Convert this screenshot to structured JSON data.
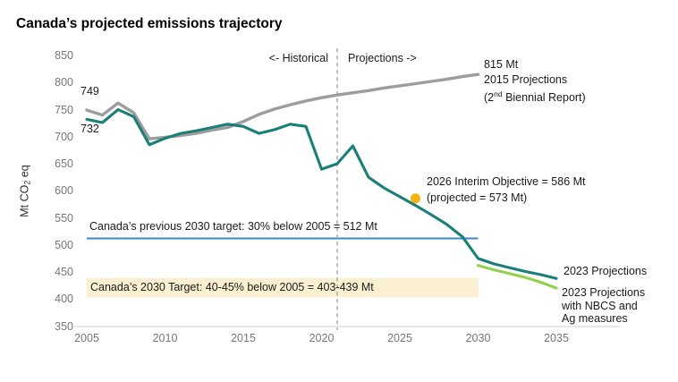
{
  "chart_data": {
    "type": "line",
    "title": "Canada’s projected emissions trajectory",
    "ylabel_parts": {
      "prefix": "Mt CO",
      "sub": "2",
      "suffix": " eq"
    },
    "xlim": [
      2005,
      2035
    ],
    "ylim": [
      350,
      850
    ],
    "x_ticks": [
      2005,
      2010,
      2015,
      2020,
      2025,
      2030,
      2035
    ],
    "y_ticks": [
      850,
      800,
      750,
      700,
      650,
      600,
      550,
      500,
      450,
      400,
      350
    ],
    "grid": "off",
    "legend": "inline-labels",
    "series": [
      {
        "name": "2015 Projections (2nd Biennial Report)",
        "color": "#9d9d9d",
        "width": 3.4,
        "start_year": 2005,
        "values": [
          749,
          740,
          762,
          744,
          696,
          699,
          702,
          706,
          712,
          717,
          728,
          741,
          751,
          759,
          766,
          772,
          777,
          781,
          785,
          790,
          794,
          798,
          802,
          806,
          811,
          815
        ]
      },
      {
        "name": "2023 Projections",
        "color": "#1a7f78",
        "width": 3.1,
        "start_year": 2005,
        "values": [
          732,
          726,
          750,
          737,
          685,
          697,
          706,
          711,
          717,
          723,
          719,
          706,
          713,
          723,
          719,
          640,
          650,
          683,
          625,
          605,
          589,
          573,
          556,
          538,
          515,
          475,
          465,
          458,
          451,
          445,
          438
        ]
      },
      {
        "name": "2023 Projections with NBCS and Ag measures",
        "color": "#92d050",
        "width": 3.1,
        "start_year": 2030,
        "values": [
          462,
          454,
          447,
          440,
          431,
          420
        ]
      }
    ],
    "divider": {
      "year": 2021,
      "left_label": "<- Historical",
      "right_label": "Projections ->",
      "color": "#ababab"
    },
    "reference_line": {
      "label": "Canada’s previous 2030 target: 30% below 2005 = 512 Mt",
      "value": 512,
      "color": "#3b87c8",
      "end_year": 2030
    },
    "target_band": {
      "label": "Canada’s 2030 Target: 40-45% below 2005 = 403-439 Mt",
      "low": 403,
      "high": 439,
      "color": "#fbf0d1",
      "end_year": 2030
    },
    "point_marker": {
      "year": 2026,
      "value": 586,
      "color": "#f5b40d",
      "line1": "2026 Interim Objective = 586 Mt",
      "line2": "(projected = 573 Mt)"
    },
    "annotations": {
      "gray_start_value": "749",
      "teal_start_value": "732",
      "gray_end_line1": "815 Mt",
      "gray_end_line2": "2015 Projections",
      "gray_end_line3_prefix": "(2",
      "gray_end_line3_sup": "nd",
      "gray_end_line3_suffix": " Biennial Report)",
      "teal_end_label": "2023 Projections",
      "green_end_line1": "2023 Projections",
      "green_end_line2": "with NBCS and",
      "green_end_line3": "Ag measures"
    },
    "axis_color": "#d9d9d9"
  }
}
